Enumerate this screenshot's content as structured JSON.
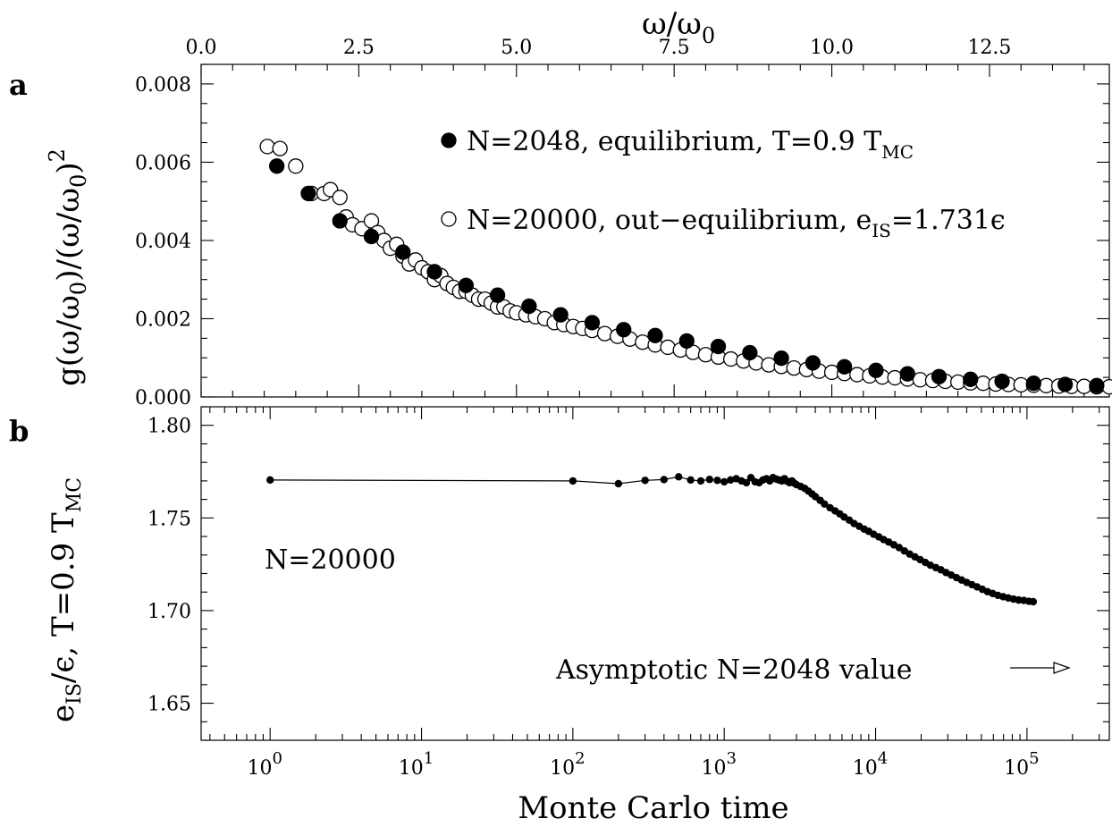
{
  "panel_labels": {
    "a": "a",
    "b": "b"
  },
  "chart_data": [
    {
      "type": "scatter",
      "panel": "a",
      "ylabel_parts": {
        "g": "g(ω/ω",
        "sub0": "0",
        "mid": ")/(ω/ω",
        "sub1": "0",
        "close": ")",
        "sup": "2"
      },
      "top_xlabel_parts": {
        "w": "ω/ω",
        "sub": "0"
      },
      "xlim": [
        0,
        14.4
      ],
      "ylim": [
        0,
        0.0085
      ],
      "top_ticks": [
        "0.0",
        "2.5",
        "5.0",
        "7.5",
        "10.0",
        "12.5"
      ],
      "top_tick_values": [
        0,
        2.5,
        5.0,
        7.5,
        10.0,
        12.5
      ],
      "y_ticks": [
        "0.000",
        "0.002",
        "0.004",
        "0.006",
        "0.008"
      ],
      "y_tick_values": [
        0.0,
        0.002,
        0.004,
        0.006,
        0.008
      ],
      "legend": [
        {
          "marker": "filled",
          "text": "N=2048, equilibrium, T=0.9 T",
          "sub": "MC",
          "tail": ""
        },
        {
          "marker": "open",
          "text": "N=20000, out−equilibrium, e",
          "sub": "IS",
          "tail": "=1.731ϵ"
        }
      ],
      "series": [
        {
          "name": "N=2048, equilibrium, T=0.9 TMC",
          "marker": "filled",
          "x": [
            1.2,
            1.7,
            2.2,
            2.7,
            3.2,
            3.7,
            4.2,
            4.7,
            5.2,
            5.7,
            6.2,
            6.7,
            7.2,
            7.7,
            8.2,
            8.7,
            9.2,
            9.7,
            10.2,
            10.7,
            11.2,
            11.7,
            12.2,
            12.7,
            13.2,
            13.7,
            14.2
          ],
          "y": [
            0.0059,
            0.0052,
            0.0045,
            0.0041,
            0.0037,
            0.0032,
            0.00285,
            0.0026,
            0.00232,
            0.0021,
            0.0019,
            0.00172,
            0.00157,
            0.00143,
            0.00129,
            0.00113,
            0.00099,
            0.00087,
            0.00077,
            0.00068,
            0.00059,
            0.00052,
            0.00045,
            0.0004,
            0.00035,
            0.00032,
            0.00029
          ]
        },
        {
          "name": "N=20000, out−equilibrium, eIS=1.731ϵ",
          "marker": "open",
          "x": [
            1.05,
            1.25,
            1.5,
            1.75,
            1.95,
            2.05,
            2.2,
            2.3,
            2.4,
            2.55,
            2.7,
            2.8,
            2.9,
            3.0,
            3.1,
            3.2,
            3.3,
            3.4,
            3.5,
            3.6,
            3.7,
            3.8,
            3.9,
            4.0,
            4.1,
            4.2,
            4.3,
            4.4,
            4.5,
            4.6,
            4.7,
            4.8,
            4.9,
            5.0,
            5.15,
            5.3,
            5.45,
            5.6,
            5.75,
            5.9,
            6.05,
            6.2,
            6.4,
            6.6,
            6.8,
            7.0,
            7.2,
            7.4,
            7.6,
            7.8,
            8.0,
            8.2,
            8.4,
            8.6,
            8.8,
            9.0,
            9.2,
            9.4,
            9.6,
            9.8,
            10.0,
            10.2,
            10.4,
            10.6,
            10.8,
            11.0,
            11.2,
            11.4,
            11.6,
            11.8,
            12.0,
            12.2,
            12.4,
            12.6,
            12.8,
            13.0,
            13.2,
            13.4,
            13.6,
            13.8,
            14.0,
            14.2,
            14.4
          ],
          "y": [
            0.0064,
            0.00635,
            0.0059,
            0.0052,
            0.0052,
            0.0053,
            0.0051,
            0.0046,
            0.0044,
            0.0043,
            0.0045,
            0.0042,
            0.004,
            0.0038,
            0.0039,
            0.0036,
            0.0034,
            0.0035,
            0.0033,
            0.0032,
            0.003,
            0.0031,
            0.0029,
            0.0028,
            0.0027,
            0.0027,
            0.0026,
            0.0025,
            0.0025,
            0.0024,
            0.0023,
            0.0023,
            0.0022,
            0.00215,
            0.0021,
            0.00205,
            0.002,
            0.0019,
            0.00185,
            0.0018,
            0.00175,
            0.0017,
            0.00162,
            0.00155,
            0.00148,
            0.0014,
            0.00133,
            0.00127,
            0.0012,
            0.00114,
            0.00108,
            0.00102,
            0.00097,
            0.00092,
            0.00087,
            0.00082,
            0.00078,
            0.00074,
            0.0007,
            0.00066,
            0.00063,
            0.0006,
            0.00057,
            0.00054,
            0.00051,
            0.00049,
            0.00046,
            0.00044,
            0.00042,
            0.0004,
            0.00038,
            0.00036,
            0.00035,
            0.00033,
            0.00032,
            0.00031,
            0.0003,
            0.00029,
            0.00028,
            0.00027,
            0.00027,
            0.00026,
            0.00026
          ]
        }
      ]
    },
    {
      "type": "line",
      "panel": "b",
      "xscale": "log",
      "xlim": [
        0.35,
        350000
      ],
      "ylim": [
        1.63,
        1.81
      ],
      "xlabel": "Monte Carlo time",
      "ylabel_parts": {
        "e": "e",
        "sub": "IS",
        "mid": "/ϵ, T=0.9 T",
        "sub2": "MC"
      },
      "x_ticks": [
        {
          "value": 1,
          "base": "10",
          "exp": "0"
        },
        {
          "value": 10,
          "base": "10",
          "exp": "1"
        },
        {
          "value": 100,
          "base": "10",
          "exp": "2"
        },
        {
          "value": 1000,
          "base": "10",
          "exp": "3"
        },
        {
          "value": 10000,
          "base": "10",
          "exp": "4"
        },
        {
          "value": 100000,
          "base": "10",
          "exp": "5"
        }
      ],
      "y_ticks": [
        "1.65",
        "1.70",
        "1.75",
        "1.80"
      ],
      "y_tick_values": [
        1.65,
        1.7,
        1.75,
        1.8
      ],
      "annotation_n": "N=20000",
      "annotation_asymptote": "Asymptotic N=2048 value",
      "series": [
        {
          "marker": "filled",
          "x": [
            1,
            100,
            200,
            300,
            400,
            500,
            600,
            700,
            800,
            900,
            1000,
            1100,
            1200,
            1300,
            1400,
            1500,
            1600,
            1700,
            1800,
            1900,
            2000,
            2100,
            2200,
            2300,
            2400,
            2500,
            2600,
            2700,
            2800,
            2900,
            3000,
            3200,
            3400,
            3600,
            3800,
            4000,
            4300,
            4600,
            5000,
            5400,
            5800,
            6200,
            6700,
            7200,
            7800,
            8400,
            9000,
            9700,
            10500,
            11300,
            12200,
            13200,
            14300,
            15500,
            16800,
            18200,
            19700,
            21300,
            23000,
            25000,
            27000,
            29200,
            31600,
            34200,
            37000,
            40000,
            43300,
            46800,
            50700,
            54900,
            59400,
            64300,
            69600,
            75300,
            81500,
            88200,
            95400,
            103000,
            110000
          ],
          "y": [
            1.7705,
            1.77,
            1.7685,
            1.7703,
            1.7707,
            1.7722,
            1.7705,
            1.77,
            1.7708,
            1.7703,
            1.7695,
            1.7705,
            1.7712,
            1.77,
            1.769,
            1.7718,
            1.7695,
            1.769,
            1.7705,
            1.7712,
            1.77,
            1.7718,
            1.771,
            1.7705,
            1.77,
            1.7712,
            1.7698,
            1.769,
            1.77,
            1.7688,
            1.768,
            1.767,
            1.766,
            1.7645,
            1.763,
            1.7615,
            1.7595,
            1.7575,
            1.7555,
            1.7538,
            1.7522,
            1.7505,
            1.7488,
            1.747,
            1.7455,
            1.744,
            1.7428,
            1.7412,
            1.7398,
            1.7383,
            1.737,
            1.7355,
            1.734,
            1.7322,
            1.7305,
            1.729,
            1.7275,
            1.726,
            1.7245,
            1.7232,
            1.722,
            1.7205,
            1.7192,
            1.7178,
            1.7165,
            1.7152,
            1.714,
            1.7128,
            1.7115,
            1.7102,
            1.7092,
            1.7082,
            1.7075,
            1.7068,
            1.7062,
            1.7057,
            1.7055,
            1.705,
            1.7048
          ]
        }
      ]
    }
  ]
}
